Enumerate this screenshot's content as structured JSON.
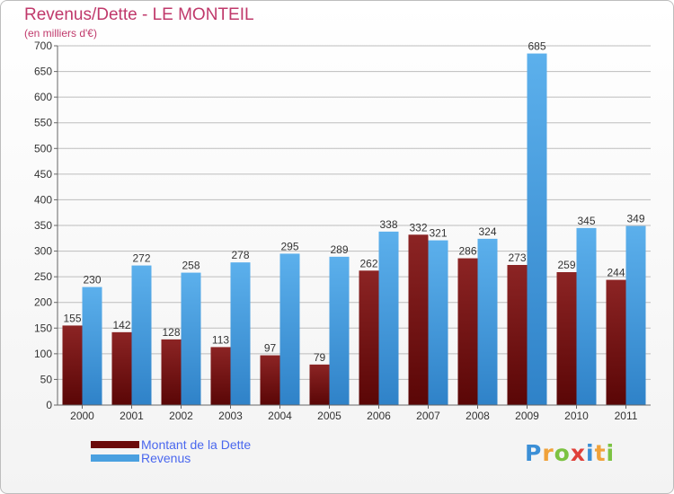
{
  "header": {
    "title": "Revenus/Dette - LE MONTEIL",
    "subtitle": "(en milliers d'€)"
  },
  "logo": {
    "text": "Proxiti"
  },
  "colors": {
    "dette": "#6b0a0a",
    "revenus": "#4aa0e0",
    "grid": "#bdbdbd",
    "axis_text": "#333333"
  },
  "chart_data": {
    "type": "bar",
    "title": "Revenus/Dette - LE MONTEIL",
    "subtitle": "(en milliers d'€)",
    "categories": [
      "2000",
      "2001",
      "2002",
      "2003",
      "2004",
      "2005",
      "2006",
      "2007",
      "2008",
      "2009",
      "2010",
      "2011"
    ],
    "series": [
      {
        "name": "Montant de la Dette",
        "color": "#6b0a0a",
        "values": [
          155,
          142,
          128,
          113,
          97,
          79,
          262,
          332,
          286,
          273,
          259,
          244
        ]
      },
      {
        "name": "Revenus",
        "color": "#4aa0e0",
        "values": [
          230,
          272,
          258,
          278,
          295,
          289,
          338,
          321,
          324,
          685,
          345,
          349
        ]
      }
    ],
    "ylim": [
      0,
      700
    ],
    "yticks": [
      0,
      50,
      100,
      150,
      200,
      250,
      300,
      350,
      400,
      450,
      500,
      550,
      600,
      650,
      700
    ],
    "grid": true,
    "legend_position": "bottom-left",
    "data_labels": true
  }
}
